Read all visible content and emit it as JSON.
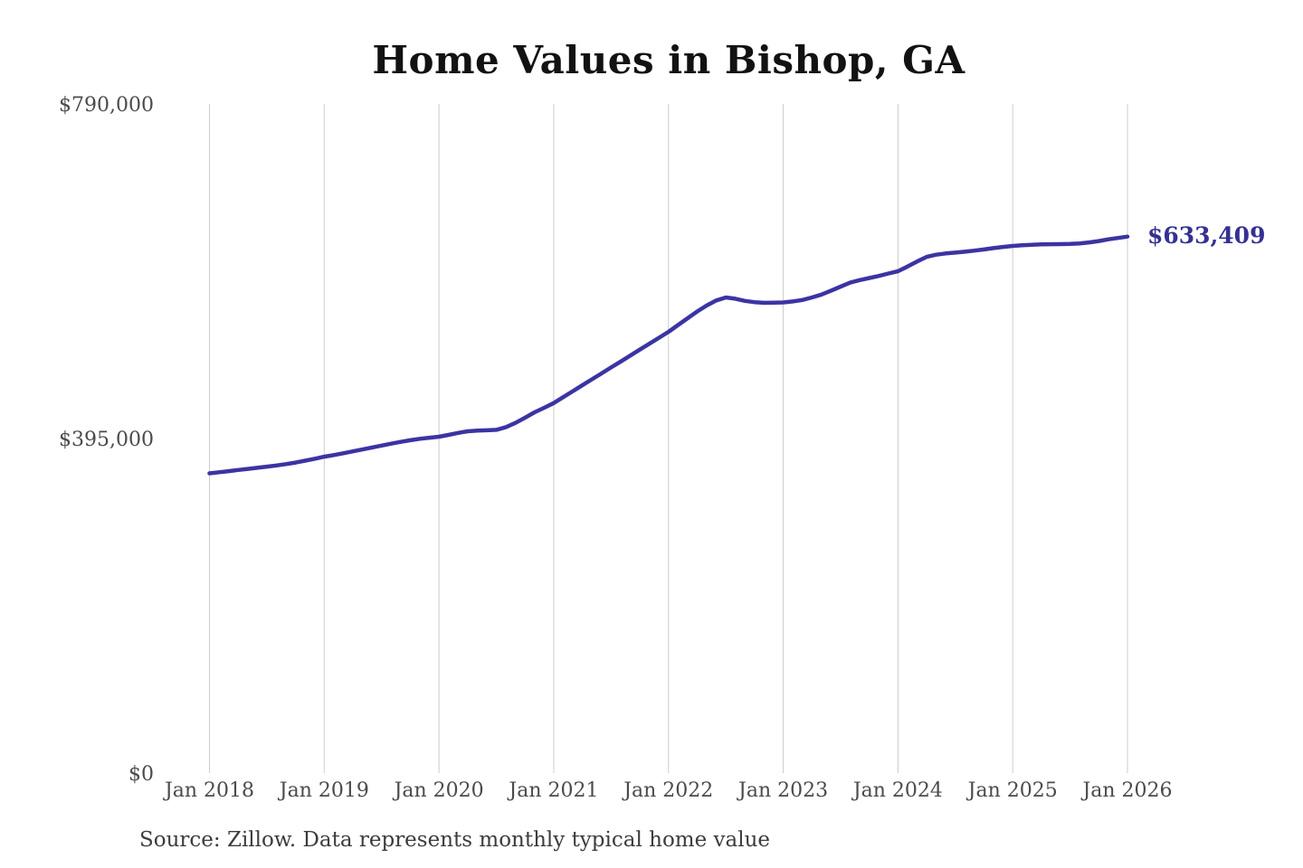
{
  "title": "Home Values in Bishop, GA",
  "source_note": "Source: Zillow. Data represents monthly typical home value",
  "colors": {
    "background": "#ffffff",
    "line": "#3b34a3",
    "end_label": "#353093",
    "grid": "#cccccc",
    "axis_text": "#4b4b4b",
    "title": "#121212",
    "source_text": "#3c3c3c"
  },
  "chart_data": {
    "type": "line",
    "title": "Home Values in Bishop, GA",
    "xlabel": "",
    "ylabel": "",
    "ylim": [
      0,
      790000
    ],
    "grid": "vertical-only",
    "legend": "none",
    "y_ticks": [
      {
        "value": 0,
        "label": "$0"
      },
      {
        "value": 395000,
        "label": "$395,000"
      },
      {
        "value": 790000,
        "label": "$790,000"
      }
    ],
    "x_ticks": [
      "Jan 2018",
      "Jan 2019",
      "Jan 2020",
      "Jan 2021",
      "Jan 2022",
      "Jan 2023",
      "Jan 2024",
      "Jan 2025",
      "Jan 2026"
    ],
    "end_label": "$633,409",
    "last_value": 633409,
    "series": [
      {
        "name": "Monthly typical home value",
        "start": "2018-01",
        "interval": "monthly",
        "values": [
          353900,
          355200,
          356500,
          357800,
          359100,
          360400,
          361800,
          363200,
          364800,
          366600,
          368800,
          371100,
          373500,
          375500,
          377600,
          379800,
          382100,
          384400,
          386700,
          388900,
          391000,
          393000,
          394700,
          396000,
          397100,
          399300,
          401600,
          403500,
          404400,
          404700,
          405200,
          408500,
          413500,
          419600,
          426000,
          431300,
          436900,
          443900,
          450900,
          457900,
          464900,
          471900,
          478900,
          485900,
          492900,
          499900,
          506900,
          513900,
          521000,
          529000,
          537000,
          545000,
          552000,
          558000,
          561500,
          560000,
          557500,
          556000,
          555200,
          555300,
          555700,
          556800,
          558500,
          561500,
          565000,
          569500,
          574400,
          579000,
          582000,
          584500,
          587000,
          589800,
          592500,
          598000,
          604000,
          609500,
          612000,
          613500,
          614500,
          615600,
          616800,
          618200,
          619800,
          621200,
          622400,
          623200,
          623800,
          624200,
          624400,
          624500,
          624700,
          625400,
          626600,
          628200,
          630200,
          631800,
          633409
        ]
      }
    ]
  }
}
